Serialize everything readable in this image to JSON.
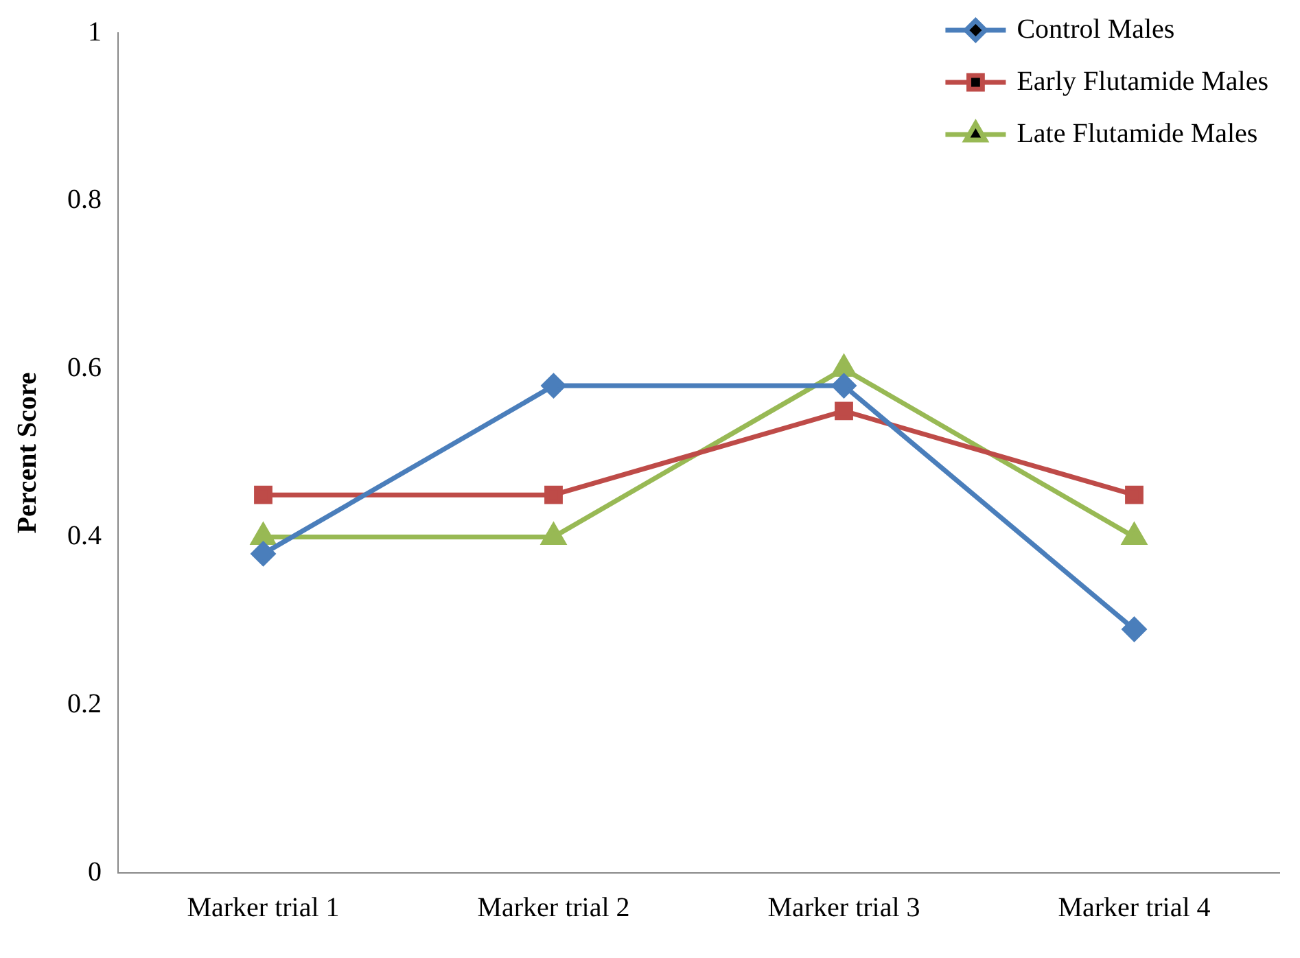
{
  "chart_data": {
    "type": "line",
    "ylabel": "Percent Score",
    "categories": [
      "Marker trial 1",
      "Marker trial 2",
      "Marker trial 3",
      "Marker trial 4"
    ],
    "series": [
      {
        "name": "Control Males",
        "color": "#4a7ebb",
        "marker": "diamond",
        "values": [
          0.38,
          0.58,
          0.58,
          0.29
        ]
      },
      {
        "name": "Early Flutamide Males",
        "color": "#be4b48",
        "marker": "square",
        "values": [
          0.45,
          0.45,
          0.55,
          0.45
        ]
      },
      {
        "name": "Late Flutamide Males",
        "color": "#98b954",
        "marker": "triangle",
        "values": [
          0.4,
          0.4,
          0.6,
          0.4
        ]
      }
    ],
    "ylim": [
      0,
      1
    ],
    "yticks": [
      0,
      0.2,
      0.4,
      0.6,
      0.8,
      1
    ],
    "grid": false,
    "legend": "top right"
  }
}
